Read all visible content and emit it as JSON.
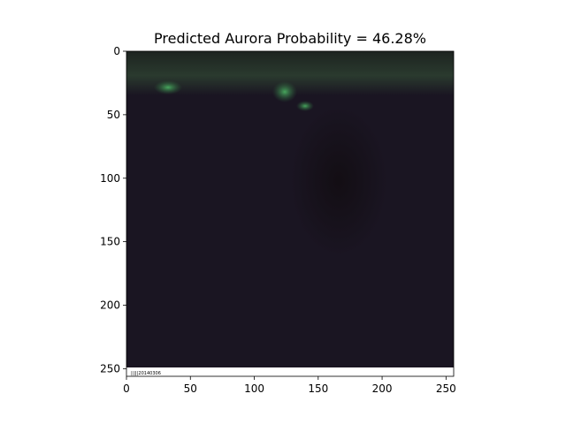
{
  "chart_data": {
    "type": "image",
    "title": "Predicted Aurora Probability = 46.28%",
    "xlabel": "",
    "ylabel": "",
    "xlim": [
      0,
      256
    ],
    "ylim": [
      256,
      0
    ],
    "x_ticks": [
      0,
      50,
      100,
      150,
      200,
      250
    ],
    "y_ticks": [
      0,
      50,
      100,
      150,
      200,
      250
    ],
    "image": {
      "description_colors": {
        "sky": "#1a1522",
        "aurora": "#3f9a55",
        "horizon_glow": "#25322a",
        "shadow": "#140f15",
        "info_strip": "#ffffff"
      },
      "info_strip_text": "|||||20140306"
    }
  }
}
